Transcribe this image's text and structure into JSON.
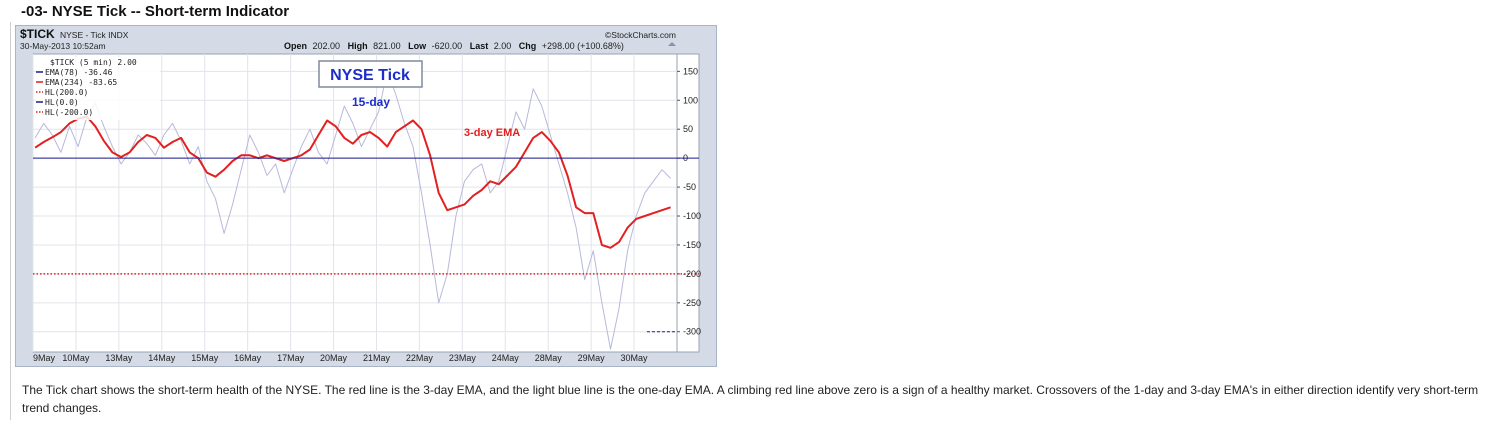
{
  "section_title": "-03- NYSE Tick -- Short-term Indicator",
  "caption": "The Tick chart shows the short-term health of the NYSE. The red line is the 3-day EMA, and the light blue line is the one-day EMA. A climbing red line above zero is a sign of a healthy market. Crossovers of the 1-day and 3-day EMA's in either direction identify very short-term trend changes.",
  "chart_header": {
    "symbol": "$TICK",
    "description": "NYSE - Tick INDX",
    "datetime": "30-May-2013 10:52am",
    "watermark": "©StockCharts.com",
    "open_label": "Open",
    "open_value": "202.00",
    "high_label": "High",
    "high_value": "821.00",
    "low_label": "Low",
    "low_value": "-620.00",
    "last_label": "Last",
    "last_value": "2.00",
    "chg_label": "Chg",
    "chg_value": "+298.00 (+100.68%)"
  },
  "legend": [
    {
      "text": "$TICK (5 min) 2.00",
      "color": "#222222",
      "marker": ""
    },
    {
      "text": "EMA(78) -36.46",
      "color": "#1a1a8c",
      "marker": "solid"
    },
    {
      "text": "EMA(234) -83.65",
      "color": "#d81e1e",
      "marker": "solid"
    },
    {
      "text": "HL(200.0)",
      "color": "#d81e1e",
      "marker": "dotted"
    },
    {
      "text": "HL(0.0)",
      "color": "#1a1a8c",
      "marker": "solid"
    },
    {
      "text": "HL(-200.0)",
      "color": "#d81e1e",
      "marker": "dotted"
    }
  ],
  "annotations": {
    "boxed": "NYSE Tick",
    "fifteen_day": "15-day",
    "three_day": "3-day EMA"
  },
  "chart_data": {
    "type": "line",
    "x_axis_labels": [
      "9May",
      "10May",
      "13May",
      "14May",
      "15May",
      "16May",
      "17May",
      "20May",
      "21May",
      "22May",
      "23May",
      "24May",
      "28May",
      "29May",
      "30May"
    ],
    "y_ticks": [
      150,
      100,
      50,
      0,
      -50,
      -100,
      -150,
      -200,
      -250,
      -300
    ],
    "ylim": [
      -335,
      180
    ],
    "x_range": [
      0,
      15
    ],
    "colors": {
      "ema78": "#b7b9da",
      "ema234": "#e32020",
      "zero_line": "#1a1a8c",
      "hl_level": "#e32020",
      "last_value": "#1a1a8c"
    },
    "horizontal_lines": [
      {
        "value": 0,
        "style": "solid",
        "color": "#1a1a8c"
      },
      {
        "value": -200,
        "style": "dotted",
        "color": "#e32020"
      }
    ],
    "last_value_marker": {
      "value": -300,
      "from_x": 14.3,
      "style": "dashed",
      "color": "#1a1a8c"
    },
    "series": [
      {
        "name": "EMA(78)",
        "color": "#b7b9da",
        "x": [
          0.05,
          0.25,
          0.45,
          0.65,
          0.85,
          1.05,
          1.25,
          1.45,
          1.65,
          1.85,
          2.05,
          2.25,
          2.45,
          2.65,
          2.85,
          3.05,
          3.25,
          3.45,
          3.65,
          3.85,
          4.05,
          4.25,
          4.45,
          4.65,
          4.85,
          5.05,
          5.25,
          5.45,
          5.65,
          5.85,
          6.05,
          6.25,
          6.45,
          6.65,
          6.85,
          7.05,
          7.25,
          7.45,
          7.65,
          7.85,
          8.05,
          8.25,
          8.45,
          8.65,
          8.85,
          9.05,
          9.25,
          9.45,
          9.65,
          9.85,
          10.05,
          10.25,
          10.45,
          10.65,
          10.85,
          11.05,
          11.25,
          11.45,
          11.65,
          11.85,
          12.05,
          12.25,
          12.45,
          12.65,
          12.85,
          13.05,
          13.25,
          13.45,
          13.65,
          13.85,
          14.05,
          14.25,
          14.45,
          14.65,
          14.85
        ],
        "values": [
          35,
          60,
          40,
          10,
          55,
          20,
          70,
          95,
          55,
          20,
          -10,
          10,
          40,
          25,
          5,
          40,
          60,
          30,
          -10,
          20,
          -40,
          -70,
          -130,
          -80,
          -20,
          40,
          10,
          -30,
          -10,
          -60,
          -20,
          20,
          50,
          10,
          -10,
          40,
          90,
          60,
          20,
          50,
          80,
          150,
          110,
          60,
          20,
          -60,
          -150,
          -250,
          -200,
          -100,
          -40,
          -20,
          -10,
          -60,
          -40,
          20,
          80,
          50,
          120,
          90,
          40,
          -10,
          -60,
          -120,
          -210,
          -160,
          -250,
          -330,
          -260,
          -160,
          -100,
          -60,
          -40,
          -20,
          -35
        ]
      },
      {
        "name": "EMA(234)",
        "color": "#e32020",
        "x": [
          0.05,
          0.25,
          0.45,
          0.65,
          0.85,
          1.05,
          1.25,
          1.45,
          1.65,
          1.85,
          2.05,
          2.25,
          2.45,
          2.65,
          2.85,
          3.05,
          3.25,
          3.45,
          3.65,
          3.85,
          4.05,
          4.25,
          4.45,
          4.65,
          4.85,
          5.05,
          5.25,
          5.45,
          5.65,
          5.85,
          6.05,
          6.25,
          6.45,
          6.65,
          6.85,
          7.05,
          7.25,
          7.45,
          7.65,
          7.85,
          8.05,
          8.25,
          8.45,
          8.65,
          8.85,
          9.05,
          9.25,
          9.45,
          9.65,
          9.85,
          10.05,
          10.25,
          10.45,
          10.65,
          10.85,
          11.05,
          11.25,
          11.45,
          11.65,
          11.85,
          12.05,
          12.25,
          12.45,
          12.65,
          12.85,
          13.05,
          13.25,
          13.45,
          13.65,
          13.85,
          14.05,
          14.25,
          14.45,
          14.65,
          14.85
        ],
        "values": [
          18,
          28,
          36,
          45,
          60,
          68,
          72,
          55,
          30,
          10,
          2,
          10,
          28,
          40,
          35,
          18,
          28,
          35,
          10,
          0,
          -25,
          -32,
          -20,
          -5,
          5,
          5,
          0,
          5,
          0,
          -5,
          0,
          5,
          15,
          40,
          65,
          55,
          35,
          25,
          40,
          45,
          35,
          20,
          45,
          55,
          65,
          50,
          5,
          -60,
          -90,
          -85,
          -80,
          -65,
          -55,
          -40,
          -45,
          -30,
          -15,
          10,
          35,
          45,
          30,
          10,
          -30,
          -85,
          -95,
          -95,
          -150,
          -155,
          -145,
          -120,
          -105,
          -100,
          -95,
          -90,
          -85
        ]
      }
    ]
  }
}
